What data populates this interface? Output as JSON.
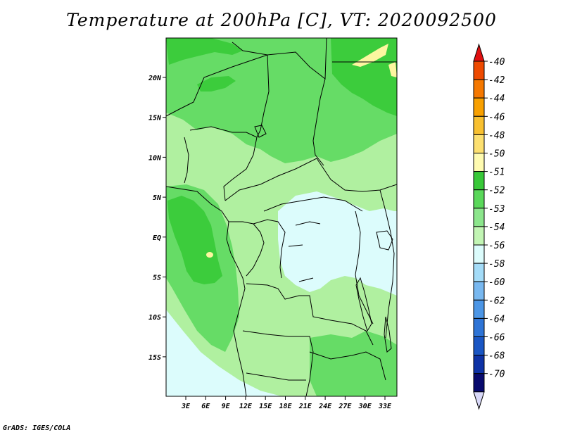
{
  "title": "Temperature at 200hPa [C], VT: 2020092500",
  "footer": "GrADS: IGES/COLA",
  "map": {
    "lat_labels": [
      "20N",
      "15N",
      "10N",
      "5N",
      "EQ",
      "5S",
      "10S",
      "15S"
    ],
    "lon_labels": [
      "3E",
      "6E",
      "9E",
      "12E",
      "15E",
      "18E",
      "21E",
      "24E",
      "27E",
      "30E",
      "33E"
    ]
  },
  "colorbar": {
    "labels": [
      "-40",
      "-42",
      "-44",
      "-46",
      "-48",
      "-50",
      "-51",
      "-52",
      "-53",
      "-54",
      "-56",
      "-58",
      "-60",
      "-62",
      "-64",
      "-66",
      "-68",
      "-70"
    ],
    "colors": [
      "#e01010",
      "#ee4a00",
      "#f57800",
      "#f8a000",
      "#f8c030",
      "#fde070",
      "#fffbb0",
      "#38c838",
      "#5ad85a",
      "#8ce68c",
      "#c2f5b4",
      "#dcfcfc",
      "#a4dcf8",
      "#78b8f0",
      "#4c96e6",
      "#2e74d6",
      "#1a56c4",
      "#0e32a6",
      "#080a6e",
      "#d8d8f8"
    ]
  },
  "colors": {
    "dark_green": "#3ccc3c",
    "mid_green": "#66dc66",
    "light_green": "#b0f0a0",
    "pale_cyan": "#dcfcfc",
    "yellow": "#fdf6a0"
  }
}
